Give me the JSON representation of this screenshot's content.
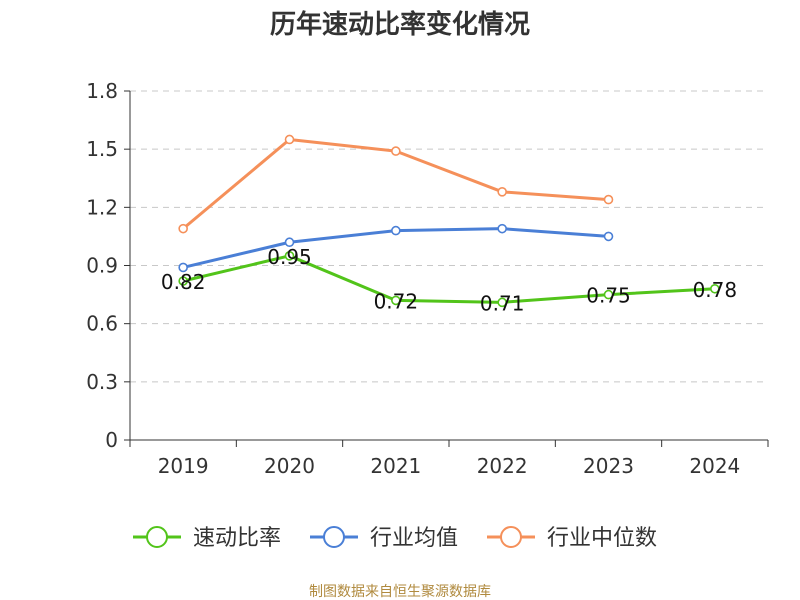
{
  "chart_data": {
    "type": "line",
    "title": "历年速动比率变化情况",
    "xlabel": "",
    "ylabel": "",
    "categories": [
      "2019",
      "2020",
      "2021",
      "2022",
      "2023",
      "2024"
    ],
    "ylim": [
      0,
      1.8
    ],
    "yticks": [
      "0",
      "0.3",
      "0.6",
      "0.9",
      "1.2",
      "1.5",
      "1.8"
    ],
    "grid": true,
    "legend_position": "bottom",
    "series": [
      {
        "name": "速动比率",
        "color": "#52c41a",
        "values": [
          0.82,
          0.95,
          0.72,
          0.71,
          0.75,
          0.78
        ],
        "data_labels": [
          "0.82",
          "0.95",
          "0.72",
          "0.71",
          "0.75",
          "0.78"
        ]
      },
      {
        "name": "行业均值",
        "color": "#4a7fd6",
        "values": [
          0.89,
          1.02,
          1.08,
          1.09,
          1.05,
          null
        ]
      },
      {
        "name": "行业中位数",
        "color": "#f5905a",
        "values": [
          1.09,
          1.55,
          1.49,
          1.28,
          1.24,
          null
        ]
      }
    ]
  },
  "source": "制图数据来自恒生聚源数据库"
}
